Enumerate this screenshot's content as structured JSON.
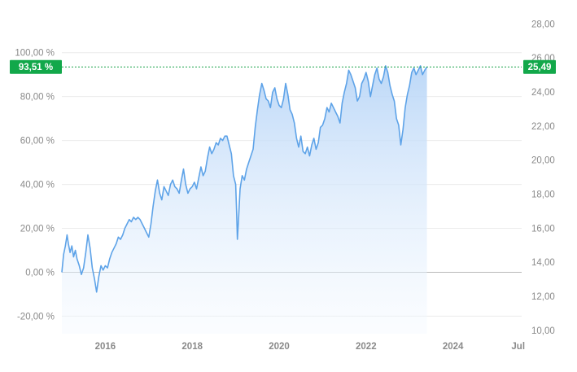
{
  "chart_data": {
    "type": "area",
    "title": "",
    "xlabel": "",
    "ylabel": "",
    "grid": true,
    "legend": "none",
    "x_range": [
      2015.0,
      2025.58
    ],
    "x_ticks": [
      {
        "x": 2016,
        "label": "2016"
      },
      {
        "x": 2018,
        "label": "2018"
      },
      {
        "x": 2020,
        "label": "2020"
      },
      {
        "x": 2022,
        "label": "2022"
      },
      {
        "x": 2024,
        "label": "2024"
      },
      {
        "x": 2025.5,
        "label": "Jul"
      }
    ],
    "y_left": {
      "unit": "percent",
      "ylim": [
        -28.0,
        124.0
      ],
      "ticks": [
        {
          "v": 100,
          "label": "100,00 %"
        },
        {
          "v": 80,
          "label": "80,00 %"
        },
        {
          "v": 60,
          "label": "60,00 %"
        },
        {
          "v": 40,
          "label": "40,00 %"
        },
        {
          "v": 20,
          "label": "20,00 %"
        },
        {
          "v": 0,
          "label": "0,00 %"
        },
        {
          "v": -20,
          "label": "-20,00 %"
        }
      ]
    },
    "y_right": {
      "unit": "price",
      "ylim": [
        9.8,
        29.4
      ],
      "ticks": [
        {
          "v": 28,
          "label": "28,00"
        },
        {
          "v": 26,
          "label": "26,00"
        },
        {
          "v": 24,
          "label": "24,00"
        },
        {
          "v": 22,
          "label": "22,00"
        },
        {
          "v": 20,
          "label": "20,00"
        },
        {
          "v": 18,
          "label": "18,00"
        },
        {
          "v": 16,
          "label": "16,00"
        },
        {
          "v": 14,
          "label": "14,00"
        },
        {
          "v": 12,
          "label": "12,00"
        },
        {
          "v": 10,
          "label": "10,00"
        }
      ]
    },
    "baseline_percent": 0,
    "last_value": {
      "percent": 93.51,
      "percent_label": "93,51 %",
      "price": 25.49,
      "price_label": "25,49"
    },
    "series": [
      {
        "color": "#5ea3e8",
        "points": [
          [
            2015.0,
            0
          ],
          [
            2015.04,
            8
          ],
          [
            2015.08,
            12
          ],
          [
            2015.12,
            17
          ],
          [
            2015.15,
            13
          ],
          [
            2015.19,
            9
          ],
          [
            2015.23,
            12
          ],
          [
            2015.27,
            7
          ],
          [
            2015.31,
            10
          ],
          [
            2015.35,
            6
          ],
          [
            2015.4,
            3
          ],
          [
            2015.45,
            -1
          ],
          [
            2015.5,
            2
          ],
          [
            2015.55,
            9
          ],
          [
            2015.6,
            17
          ],
          [
            2015.65,
            11
          ],
          [
            2015.7,
            2
          ],
          [
            2015.75,
            -3
          ],
          [
            2015.8,
            -9
          ],
          [
            2015.85,
            -2
          ],
          [
            2015.9,
            3
          ],
          [
            2015.95,
            1
          ],
          [
            2016.0,
            3
          ],
          [
            2016.05,
            2
          ],
          [
            2016.1,
            6
          ],
          [
            2016.15,
            9
          ],
          [
            2016.2,
            11
          ],
          [
            2016.25,
            13
          ],
          [
            2016.3,
            16
          ],
          [
            2016.35,
            15
          ],
          [
            2016.4,
            17
          ],
          [
            2016.45,
            20
          ],
          [
            2016.5,
            22
          ],
          [
            2016.55,
            24
          ],
          [
            2016.6,
            23
          ],
          [
            2016.65,
            25
          ],
          [
            2016.7,
            24
          ],
          [
            2016.75,
            25
          ],
          [
            2016.8,
            24
          ],
          [
            2016.85,
            22
          ],
          [
            2016.9,
            20
          ],
          [
            2016.95,
            18
          ],
          [
            2017.0,
            16
          ],
          [
            2017.05,
            22
          ],
          [
            2017.1,
            30
          ],
          [
            2017.15,
            37
          ],
          [
            2017.2,
            42
          ],
          [
            2017.25,
            36
          ],
          [
            2017.3,
            33
          ],
          [
            2017.35,
            39
          ],
          [
            2017.4,
            37
          ],
          [
            2017.45,
            35
          ],
          [
            2017.5,
            40
          ],
          [
            2017.55,
            42
          ],
          [
            2017.6,
            39
          ],
          [
            2017.65,
            38
          ],
          [
            2017.7,
            36
          ],
          [
            2017.75,
            42
          ],
          [
            2017.8,
            47
          ],
          [
            2017.85,
            40
          ],
          [
            2017.9,
            36
          ],
          [
            2017.95,
            38
          ],
          [
            2018.0,
            39
          ],
          [
            2018.05,
            41
          ],
          [
            2018.1,
            38
          ],
          [
            2018.15,
            43
          ],
          [
            2018.2,
            48
          ],
          [
            2018.25,
            44
          ],
          [
            2018.3,
            46
          ],
          [
            2018.35,
            52
          ],
          [
            2018.4,
            57
          ],
          [
            2018.45,
            54
          ],
          [
            2018.5,
            56
          ],
          [
            2018.55,
            59
          ],
          [
            2018.6,
            58
          ],
          [
            2018.65,
            61
          ],
          [
            2018.7,
            60
          ],
          [
            2018.75,
            62
          ],
          [
            2018.8,
            62
          ],
          [
            2018.85,
            58
          ],
          [
            2018.9,
            54
          ],
          [
            2018.95,
            44
          ],
          [
            2019.0,
            40
          ],
          [
            2019.02,
            28
          ],
          [
            2019.04,
            15
          ],
          [
            2019.06,
            22
          ],
          [
            2019.08,
            30
          ],
          [
            2019.1,
            38
          ],
          [
            2019.15,
            44
          ],
          [
            2019.2,
            42
          ],
          [
            2019.25,
            47
          ],
          [
            2019.3,
            50
          ],
          [
            2019.35,
            53
          ],
          [
            2019.4,
            56
          ],
          [
            2019.45,
            66
          ],
          [
            2019.5,
            74
          ],
          [
            2019.55,
            81
          ],
          [
            2019.6,
            86
          ],
          [
            2019.65,
            83
          ],
          [
            2019.7,
            79
          ],
          [
            2019.75,
            78
          ],
          [
            2019.8,
            75
          ],
          [
            2019.85,
            82
          ],
          [
            2019.9,
            84
          ],
          [
            2019.95,
            79
          ],
          [
            2020.0,
            76
          ],
          [
            2020.05,
            75
          ],
          [
            2020.1,
            79
          ],
          [
            2020.15,
            86
          ],
          [
            2020.2,
            81
          ],
          [
            2020.25,
            74
          ],
          [
            2020.3,
            72
          ],
          [
            2020.35,
            68
          ],
          [
            2020.4,
            61
          ],
          [
            2020.45,
            57
          ],
          [
            2020.5,
            62
          ],
          [
            2020.55,
            55
          ],
          [
            2020.6,
            54
          ],
          [
            2020.65,
            57
          ],
          [
            2020.7,
            53
          ],
          [
            2020.75,
            58
          ],
          [
            2020.8,
            61
          ],
          [
            2020.85,
            56
          ],
          [
            2020.9,
            59
          ],
          [
            2020.95,
            66
          ],
          [
            2021.0,
            67
          ],
          [
            2021.05,
            70
          ],
          [
            2021.1,
            75
          ],
          [
            2021.15,
            73
          ],
          [
            2021.2,
            77
          ],
          [
            2021.25,
            75
          ],
          [
            2021.3,
            73
          ],
          [
            2021.35,
            71
          ],
          [
            2021.4,
            68
          ],
          [
            2021.45,
            77
          ],
          [
            2021.5,
            82
          ],
          [
            2021.55,
            86
          ],
          [
            2021.6,
            92
          ],
          [
            2021.65,
            90
          ],
          [
            2021.7,
            87
          ],
          [
            2021.75,
            84
          ],
          [
            2021.8,
            78
          ],
          [
            2021.85,
            80
          ],
          [
            2021.9,
            86
          ],
          [
            2021.95,
            88
          ],
          [
            2022.0,
            91
          ],
          [
            2022.05,
            87
          ],
          [
            2022.1,
            80
          ],
          [
            2022.15,
            85
          ],
          [
            2022.2,
            90
          ],
          [
            2022.25,
            93
          ],
          [
            2022.3,
            88
          ],
          [
            2022.35,
            86
          ],
          [
            2022.4,
            89
          ],
          [
            2022.45,
            94
          ],
          [
            2022.5,
            91
          ],
          [
            2022.55,
            85
          ],
          [
            2022.6,
            81
          ],
          [
            2022.65,
            78
          ],
          [
            2022.7,
            70
          ],
          [
            2022.75,
            67
          ],
          [
            2022.8,
            58
          ],
          [
            2022.85,
            65
          ],
          [
            2022.9,
            75
          ],
          [
            2022.95,
            81
          ],
          [
            2023.0,
            85
          ],
          [
            2023.05,
            91
          ],
          [
            2023.1,
            93
          ],
          [
            2023.15,
            90
          ],
          [
            2023.2,
            92
          ],
          [
            2023.25,
            94
          ],
          [
            2023.3,
            90
          ],
          [
            2023.35,
            92
          ],
          [
            2023.4,
            93.51
          ]
        ]
      }
    ]
  }
}
